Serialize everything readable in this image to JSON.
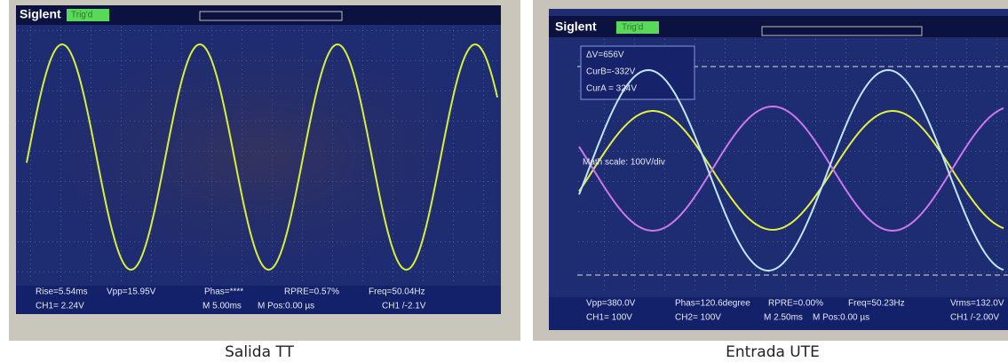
{
  "panels": [
    {
      "brand": "Siglent",
      "status": "Trig'd",
      "readouts": [
        "Rise=5.54ms",
        "Vpp=15.95V",
        "Phas=****",
        "RPRE=0.57%",
        "Freq=50.04Hz",
        "CH1= 2.24V",
        "M 5.00ms",
        "M Pos:0.00 µs",
        "CH1 /-2.1V"
      ],
      "caption": "Salida TT"
    },
    {
      "brand": "Siglent",
      "status": "Trig'd",
      "cursors": [
        "ΔV=656V",
        "CurB=-332V",
        "CurA = 324V"
      ],
      "math_scale": "Math scale: 100V/div",
      "readouts": [
        "Vpp=380.0V",
        "Phas=120.6degree",
        "RPRE=0.00%",
        "Freq=50.23Hz",
        "Vrms=132.0V",
        "CH1= 100V",
        "CH2= 100V",
        "M 2.50ms",
        "M Pos:0.00 µs",
        "CH1 /-2.00V"
      ],
      "caption": "Entrada UTE"
    }
  ]
}
